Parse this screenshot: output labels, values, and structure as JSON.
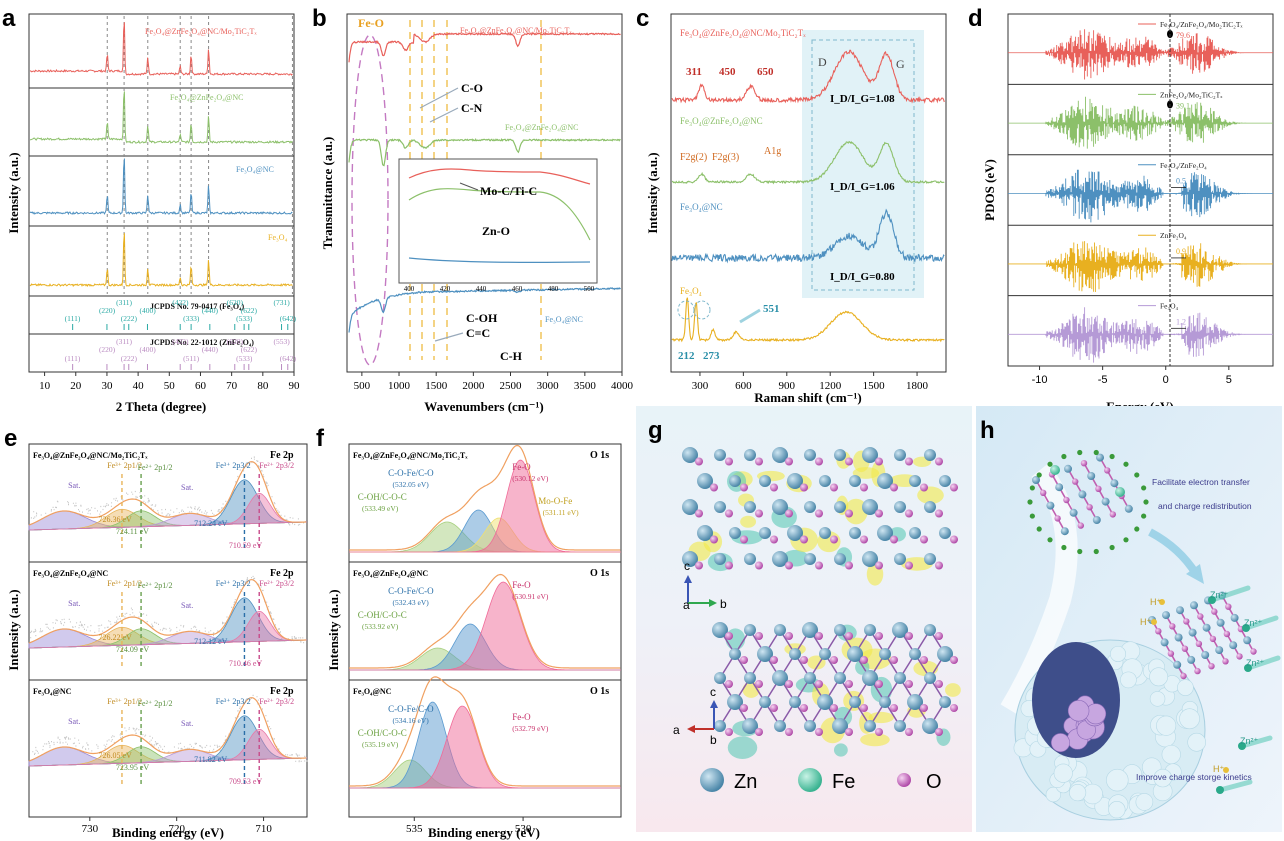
{
  "panels": {
    "a": {
      "letter": "a",
      "xlabel": "2 Theta (degree)",
      "ylabel": "Intensity (a.u.)",
      "xticks": [
        "10",
        "20",
        "30",
        "40",
        "50",
        "60",
        "70",
        "80",
        "90"
      ],
      "traces": [
        {
          "name": "Fe₃O₄@ZnFe₂O₄@NC/Mo₂TiC₂Tₓ",
          "color": "#e8605a"
        },
        {
          "name": "Fe₃O₄@ZnFe₂O₄@NC",
          "color": "#8cc06a"
        },
        {
          "name": "Fe₃O₄@NC",
          "color": "#4e90c0"
        },
        {
          "name": "Fe₃O₄",
          "color": "#e8b020"
        }
      ],
      "peaks_2theta": [
        30.1,
        35.5,
        43.1,
        53.5,
        57.0,
        62.6
      ],
      "ref1": {
        "title": "JCPDS No. 79-0417 (Fe₃O₄)",
        "color": "#2aa9a4",
        "hkl": [
          "(111)",
          "(220)",
          "(311)",
          "(222)",
          "(400)",
          "(422)",
          "(333)",
          "(440)",
          "(620)",
          "(533)",
          "(622)",
          "(731)",
          "(642)"
        ]
      },
      "ref2": {
        "title": "JCPDS No. 22-1012 (ZnFe₂O₄)",
        "color": "#b98ac0",
        "hkl": [
          "(111)",
          "(220)",
          "(311)",
          "(222)",
          "(400)",
          "(422)",
          "(511)",
          "(440)",
          "(620)",
          "(533)",
          "(622)",
          "(553)",
          "(642)"
        ]
      }
    },
    "b": {
      "letter": "b",
      "xlabel": "Wavenumbers (cm⁻¹)",
      "ylabel": "Transmittance (a.u.)",
      "xticks": [
        "500",
        "1000",
        "1500",
        "2000",
        "2500",
        "3000",
        "3500",
        "4000"
      ],
      "traces": [
        {
          "name": "Fe₃O₄@ZnFe₂O₄@NC/Mo₂TiC₂Tₓ",
          "color": "#e8605a"
        },
        {
          "name": "Fe₃O₄@ZnFe₂O₄@NC",
          "color": "#8cc06a"
        },
        {
          "name": "Fe₃O₄@NC",
          "color": "#4e90c0"
        }
      ],
      "annotations": [
        "Fe-O",
        "C-O",
        "C-N",
        "C-OH",
        "C=C",
        "C-H",
        "Mo-C/Ti-C",
        "Zn-O"
      ],
      "inset_xticks": [
        "400",
        "420",
        "440",
        "460",
        "480",
        "500"
      ]
    },
    "c": {
      "letter": "c",
      "xlabel": "Raman shift (cm⁻¹)",
      "ylabel": "Intensity (a.u.)",
      "xticks": [
        "300",
        "600",
        "900",
        "1200",
        "1500",
        "1800"
      ],
      "traces": [
        {
          "name": "Fe₃O₄@ZnFe₂O₄@NC/Mo₂TiC₂Tₓ",
          "color": "#e8605a",
          "ratio": "I_D/I_G=1.08"
        },
        {
          "name": "Fe₃O₄@ZnFe₂O₄@NC",
          "color": "#8cc06a",
          "ratio": "I_D/I_G=1.06"
        },
        {
          "name": "Fe₃O₄@NC",
          "color": "#4e90c0",
          "ratio": "I_D/I_G=0.80"
        },
        {
          "name": "Fe₃O₄",
          "color": "#e8b020",
          "ratio": ""
        }
      ],
      "band_d": "D",
      "band_g": "G",
      "peak_labels": [
        "311",
        "450",
        "650"
      ],
      "modes": [
        "F2g(2)",
        "F2g(3)",
        "A1g"
      ],
      "low_peaks": [
        "212",
        "273",
        "551"
      ]
    },
    "d": {
      "letter": "d",
      "xlabel": "Energy (eV)",
      "ylabel": "PDOS (eV)",
      "xticks": [
        "-10",
        "-5",
        "0",
        "5"
      ],
      "rows": [
        {
          "name": "Fe₃O₄/ZnFe₂O₄/Mo₂TiC₂Tₓ",
          "value": "79.6",
          "color": "#e8605a"
        },
        {
          "name": "ZnFe₂O₄/Mo₂TiC₂Tₓ",
          "value": "39.1",
          "color": "#8cc06a"
        },
        {
          "name": "Fe₃O₄/ZnFe₂O₄",
          "value": "0.5",
          "color": "#4e90c0"
        },
        {
          "name": "ZnFe₂O₄",
          "value": "0.9",
          "color": "#e8b020"
        },
        {
          "name": "Fe₃O₄",
          "value": "1.2",
          "color": "#b59ad6"
        }
      ]
    },
    "e": {
      "letter": "e",
      "xlabel": "Binding energy (eV)",
      "ylabel": "Intensity (a.u.)",
      "xticks": [
        "730",
        "720",
        "710"
      ],
      "rows": [
        {
          "sample": "Fe₃O₄@ZnFe₂O₄@NC/Mo₂TiC₂Tₓ",
          "core": "Fe 2p",
          "labels": [
            "Sat.",
            "Fe³⁺ 2p1/2",
            "Fe²⁺ 2p1/2",
            "Fe³⁺ 2p3/2",
            "Fe²⁺ 2p3/2",
            "Sat."
          ],
          "energies": [
            "726.36 eV",
            "724.11 eV",
            "712.24 eV",
            "710.59 eV"
          ]
        },
        {
          "sample": "Fe₃O₄@ZnFe₂O₄@NC",
          "core": "Fe 2p",
          "labels": [
            "Sat.",
            "Fe³⁺ 2p1/2",
            "Fe²⁺ 2p1/2",
            "Fe³⁺ 2p3/2",
            "Fe²⁺ 2p3/2",
            "Sat."
          ],
          "energies": [
            "726.22 eV",
            "724.09 eV",
            "712.12 eV",
            "710.46 eV"
          ]
        },
        {
          "sample": "Fe₃O₄@NC",
          "core": "Fe 2p",
          "labels": [
            "Sat.",
            "Fe³⁺ 2p1/2",
            "Fe²⁺ 2p1/2",
            "Fe³⁺ 2p3/2",
            "Fe²⁺ 2p3/2",
            "Sat."
          ],
          "energies": [
            "726.05 eV",
            "723.95 eV",
            "711.82 eV",
            "709.53 eV"
          ]
        }
      ]
    },
    "f": {
      "letter": "f",
      "xlabel": "Binding energy (eV)",
      "ylabel": "Intensity (a.u.)",
      "xticks": [
        "535",
        "530"
      ],
      "rows": [
        {
          "sample": "Fe₃O₄@ZnFe₂O₄@NC/Mo₂TiC₂Tₓ",
          "core": "O 1s",
          "l1": "C-O-Fe/C-O",
          "e1": "(532.05 eV)",
          "l2": "C-OH/C-O-C",
          "e2": "(533.49 eV)",
          "l3": "Fe-O",
          "e3": "(530.12 eV)",
          "l4": "Mo-O-Fe",
          "e4": "(531.11 eV)"
        },
        {
          "sample": "Fe₃O₄@ZnFe₂O₄@NC",
          "core": "O 1s",
          "l1": "C-O-Fe/C-O",
          "e1": "(532.43 eV)",
          "l2": "C-OH/C-O-C",
          "e2": "(533.92 eV)",
          "l3": "Fe-O",
          "e3": "(530.91 eV)"
        },
        {
          "sample": "Fe₃O₄@NC",
          "core": "O 1s",
          "l1": "C-O-Fe/C-O",
          "e1": "(534.16 eV)",
          "l2": "C-OH/C-O-C",
          "e2": "(535.19 eV)",
          "l3": "Fe-O",
          "e3": "(532.79 eV)"
        }
      ]
    },
    "g": {
      "letter": "g",
      "axes_top": [
        "c",
        "a",
        "b"
      ],
      "axes_bottom": [
        "c",
        "a",
        "b"
      ],
      "legend": [
        "Zn",
        "Fe",
        "O"
      ]
    },
    "h": {
      "letter": "h",
      "text1": "Facilitate electron transfer",
      "text2": "and charge redistribution",
      "text3": "Improve charge storge kinetics",
      "ions": [
        "Zn²⁺",
        "Zn²⁺",
        "Zn²⁺",
        "Zn²⁺",
        "H⁺",
        "H⁺",
        "H⁺"
      ]
    }
  },
  "chart_data": [
    {
      "type": "line",
      "title": "a",
      "xlabel": "2 Theta (degree)",
      "ylabel": "Intensity (a.u.)",
      "xlim": [
        5,
        90
      ],
      "series": [
        {
          "name": "Fe₃O₄@ZnFe₂O₄@NC/Mo₂TiC₂Tₓ",
          "x": [
            30.1,
            35.5,
            43.1,
            53.5,
            57.0,
            62.6
          ],
          "values": [
            0.3,
            1.0,
            0.3,
            0.15,
            0.35,
            0.45
          ]
        },
        {
          "name": "Fe₃O₄@ZnFe₂O₄@NC",
          "x": [
            30.1,
            35.5,
            43.1,
            53.5,
            57.0,
            62.6
          ],
          "values": [
            0.3,
            1.0,
            0.3,
            0.15,
            0.35,
            0.45
          ]
        },
        {
          "name": "Fe₃O₄@NC",
          "x": [
            30.1,
            35.5,
            43.1,
            53.5,
            57.0,
            62.6
          ],
          "values": [
            0.2,
            1.0,
            0.2,
            0.1,
            0.25,
            0.3
          ]
        },
        {
          "name": "Fe₃O₄",
          "x": [
            30.1,
            35.5,
            43.1,
            53.5,
            57.0,
            62.6
          ],
          "values": [
            0.25,
            1.0,
            0.25,
            0.12,
            0.3,
            0.4
          ]
        }
      ]
    },
    {
      "type": "line",
      "title": "b",
      "xlabel": "Wavenumbers (cm⁻¹)",
      "ylabel": "Transmittance (a.u.)",
      "xlim": [
        300,
        4000
      ],
      "series": [
        {
          "name": "Fe₃O₄@ZnFe₂O₄@NC/Mo₂TiC₂Tₓ",
          "x": [
            550,
            1050,
            1350,
            1600,
            2900
          ],
          "values": [
            -1.0,
            -0.2,
            -0.15,
            -0.1,
            -0.15
          ]
        },
        {
          "name": "Fe₃O₄@ZnFe₂O₄@NC",
          "x": [
            550,
            1050,
            1350,
            1600,
            2900
          ],
          "values": [
            -1.0,
            -0.2,
            -0.1,
            -0.1,
            -0.15
          ]
        },
        {
          "name": "Fe₃O₄@NC",
          "x": [
            550,
            1050,
            1350,
            1600,
            2900
          ],
          "values": [
            -1.0,
            -0.1,
            -0.05,
            -0.05,
            -0.02
          ]
        }
      ]
    },
    {
      "type": "line",
      "title": "c",
      "xlabel": "Raman shift (cm⁻¹)",
      "ylabel": "Intensity (a.u.)",
      "xlim": [
        100,
        2000
      ],
      "series": [
        {
          "name": "Fe₃O₄@ZnFe₂O₄@NC/Mo₂TiC₂Tₓ",
          "x": [
            311,
            450,
            650,
            1350,
            1580
          ],
          "values": [
            0.2,
            0.15,
            0.2,
            1.0,
            0.93
          ]
        },
        {
          "name": "Fe₃O₄@ZnFe₂O₄@NC",
          "x": [
            311,
            450,
            650,
            1350,
            1580
          ],
          "values": [
            0.1,
            0.1,
            0.1,
            0.7,
            0.66
          ]
        },
        {
          "name": "Fe₃O₄@NC",
          "x": [
            1350,
            1580
          ],
          "values": [
            0.5,
            0.62
          ]
        },
        {
          "name": "Fe₃O₄",
          "x": [
            212,
            273,
            551,
            1300
          ],
          "values": [
            1.0,
            0.9,
            0.3,
            0.6
          ]
        }
      ]
    },
    {
      "type": "bar",
      "title": "d",
      "xlabel": "Energy (eV)",
      "ylabel": "PDOS (eV)",
      "categories": [
        "Fe₃O₄/ZnFe₂O₄/Mo₂TiC₂Tₓ",
        "ZnFe₂O₄/Mo₂TiC₂Tₓ",
        "Fe₃O₄/ZnFe₂O₄",
        "ZnFe₂O₄",
        "Fe₃O₄"
      ],
      "values": [
        79.6,
        39.1,
        0.5,
        0.9,
        1.2
      ]
    }
  ]
}
